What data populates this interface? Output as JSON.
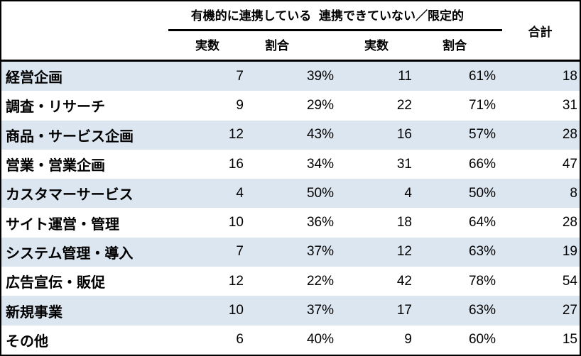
{
  "chart_data": {
    "type": "table",
    "column_groups": [
      {
        "label": "有機的に連携している",
        "subcolumns": [
          "実数",
          "割合"
        ]
      },
      {
        "label": "連携できていない／限定的",
        "subcolumns": [
          "実数",
          "割合"
        ]
      }
    ],
    "total_column_label": "合計",
    "rows": [
      {
        "label": "経営企画",
        "values": [
          "7",
          "39%",
          "11",
          "61%",
          "18"
        ]
      },
      {
        "label": "調査・リサーチ",
        "values": [
          "9",
          "29%",
          "22",
          "71%",
          "31"
        ]
      },
      {
        "label": "商品・サービス企画",
        "values": [
          "12",
          "43%",
          "16",
          "57%",
          "28"
        ]
      },
      {
        "label": "営業・営業企画",
        "values": [
          "16",
          "34%",
          "31",
          "66%",
          "47"
        ]
      },
      {
        "label": "カスタマーサービス",
        "values": [
          "4",
          "50%",
          "4",
          "50%",
          "8"
        ]
      },
      {
        "label": "サイト運営・管理",
        "values": [
          "10",
          "36%",
          "18",
          "64%",
          "28"
        ]
      },
      {
        "label": "システム管理・導入",
        "values": [
          "7",
          "37%",
          "12",
          "63%",
          "19"
        ]
      },
      {
        "label": "広告宣伝・販促",
        "values": [
          "12",
          "22%",
          "42",
          "78%",
          "54"
        ]
      },
      {
        "label": "新規事業",
        "values": [
          "10",
          "37%",
          "17",
          "63%",
          "27"
        ]
      },
      {
        "label": "その他",
        "values": [
          "6",
          "40%",
          "9",
          "60%",
          "15"
        ]
      }
    ]
  },
  "style": {
    "alt_row_color": "#dce6f1",
    "border_color": "#000000",
    "background_color": "#ffffff",
    "text_color": "#000000"
  }
}
